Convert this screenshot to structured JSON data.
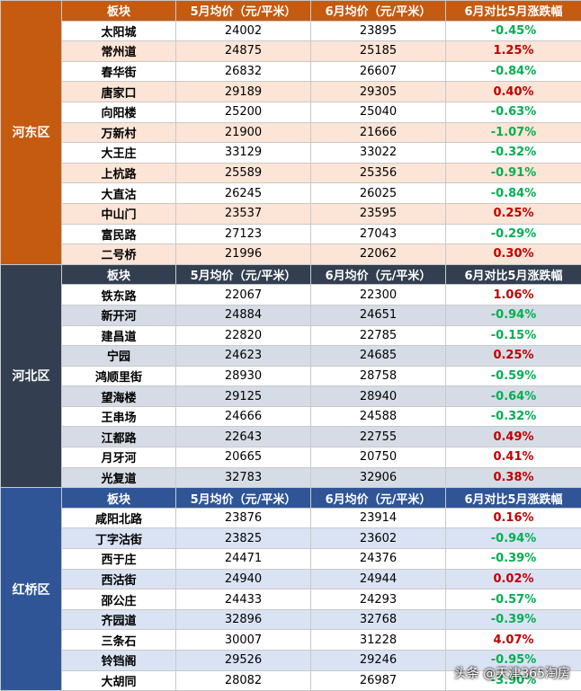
{
  "sections": [
    {
      "district": "河东区",
      "color": "#c55a11",
      "stripe": "#fce4d6",
      "header": [
        "板块",
        "5月均价（元/平米）",
        "6月均价（元/平米）",
        "6月对比5月涨跌幅"
      ],
      "rows": [
        [
          "太阳城",
          "24002",
          "23895",
          "-0.45%"
        ],
        [
          "常州道",
          "24875",
          "25185",
          "1.25%"
        ],
        [
          "春华街",
          "26832",
          "26607",
          "-0.84%"
        ],
        [
          "唐家口",
          "29189",
          "29305",
          "0.40%"
        ],
        [
          "向阳楼",
          "25200",
          "25040",
          "-0.63%"
        ],
        [
          "万新村",
          "21900",
          "21666",
          "-1.07%"
        ],
        [
          "大王庄",
          "33129",
          "33022",
          "-0.32%"
        ],
        [
          "上杭路",
          "25589",
          "25356",
          "-0.91%"
        ],
        [
          "大直沽",
          "26245",
          "26025",
          "-0.84%"
        ],
        [
          "中山门",
          "23537",
          "23595",
          "0.25%"
        ],
        [
          "富民路",
          "27123",
          "27043",
          "-0.29%"
        ],
        [
          "二号桥",
          "21996",
          "22062",
          "0.30%"
        ]
      ]
    },
    {
      "district": "河北区",
      "color": "#333f50",
      "stripe": "#d6dce5",
      "header": [
        "板块",
        "5月均价（元/平米）",
        "6月均价（元/平米）",
        "6月对比5月涨跌幅"
      ],
      "rows": [
        [
          "铁东路",
          "22067",
          "22300",
          "1.06%"
        ],
        [
          "新开河",
          "24884",
          "24651",
          "-0.94%"
        ],
        [
          "建昌道",
          "22820",
          "22785",
          "-0.15%"
        ],
        [
          "宁园",
          "24623",
          "24685",
          "0.25%"
        ],
        [
          "鸿顺里街",
          "28930",
          "28758",
          "-0.59%"
        ],
        [
          "望海楼",
          "29125",
          "28940",
          "-0.64%"
        ],
        [
          "王串场",
          "24666",
          "24588",
          "-0.32%"
        ],
        [
          "江都路",
          "22643",
          "22755",
          "0.49%"
        ],
        [
          "月牙河",
          "20665",
          "20750",
          "0.41%"
        ],
        [
          "光复道",
          "32783",
          "32906",
          "0.38%"
        ]
      ]
    },
    {
      "district": "红桥区",
      "color": "#2f5597",
      "stripe": "#dae3f3",
      "header": [
        "板块",
        "5月均价（元/平米）",
        "6月均价（元/平米）",
        "6月对比5月涨跌幅"
      ],
      "rows": [
        [
          "咸阳北路",
          "23876",
          "23914",
          "0.16%"
        ],
        [
          "丁字沽街",
          "23825",
          "23602",
          "-0.94%"
        ],
        [
          "西于庄",
          "24471",
          "24376",
          "-0.39%"
        ],
        [
          "西沽街",
          "24940",
          "24944",
          "0.02%"
        ],
        [
          "邵公庄",
          "24433",
          "24293",
          "-0.57%"
        ],
        [
          "齐园道",
          "32896",
          "32768",
          "-0.39%"
        ],
        [
          "三条石",
          "30007",
          "31228",
          "4.07%"
        ],
        [
          "铃铛阁",
          "29526",
          "29246",
          "-0.95%"
        ],
        [
          "大胡同",
          "28082",
          "26987",
          "-3.90%"
        ]
      ]
    }
  ],
  "watermark": "头条 @天津365淘房"
}
